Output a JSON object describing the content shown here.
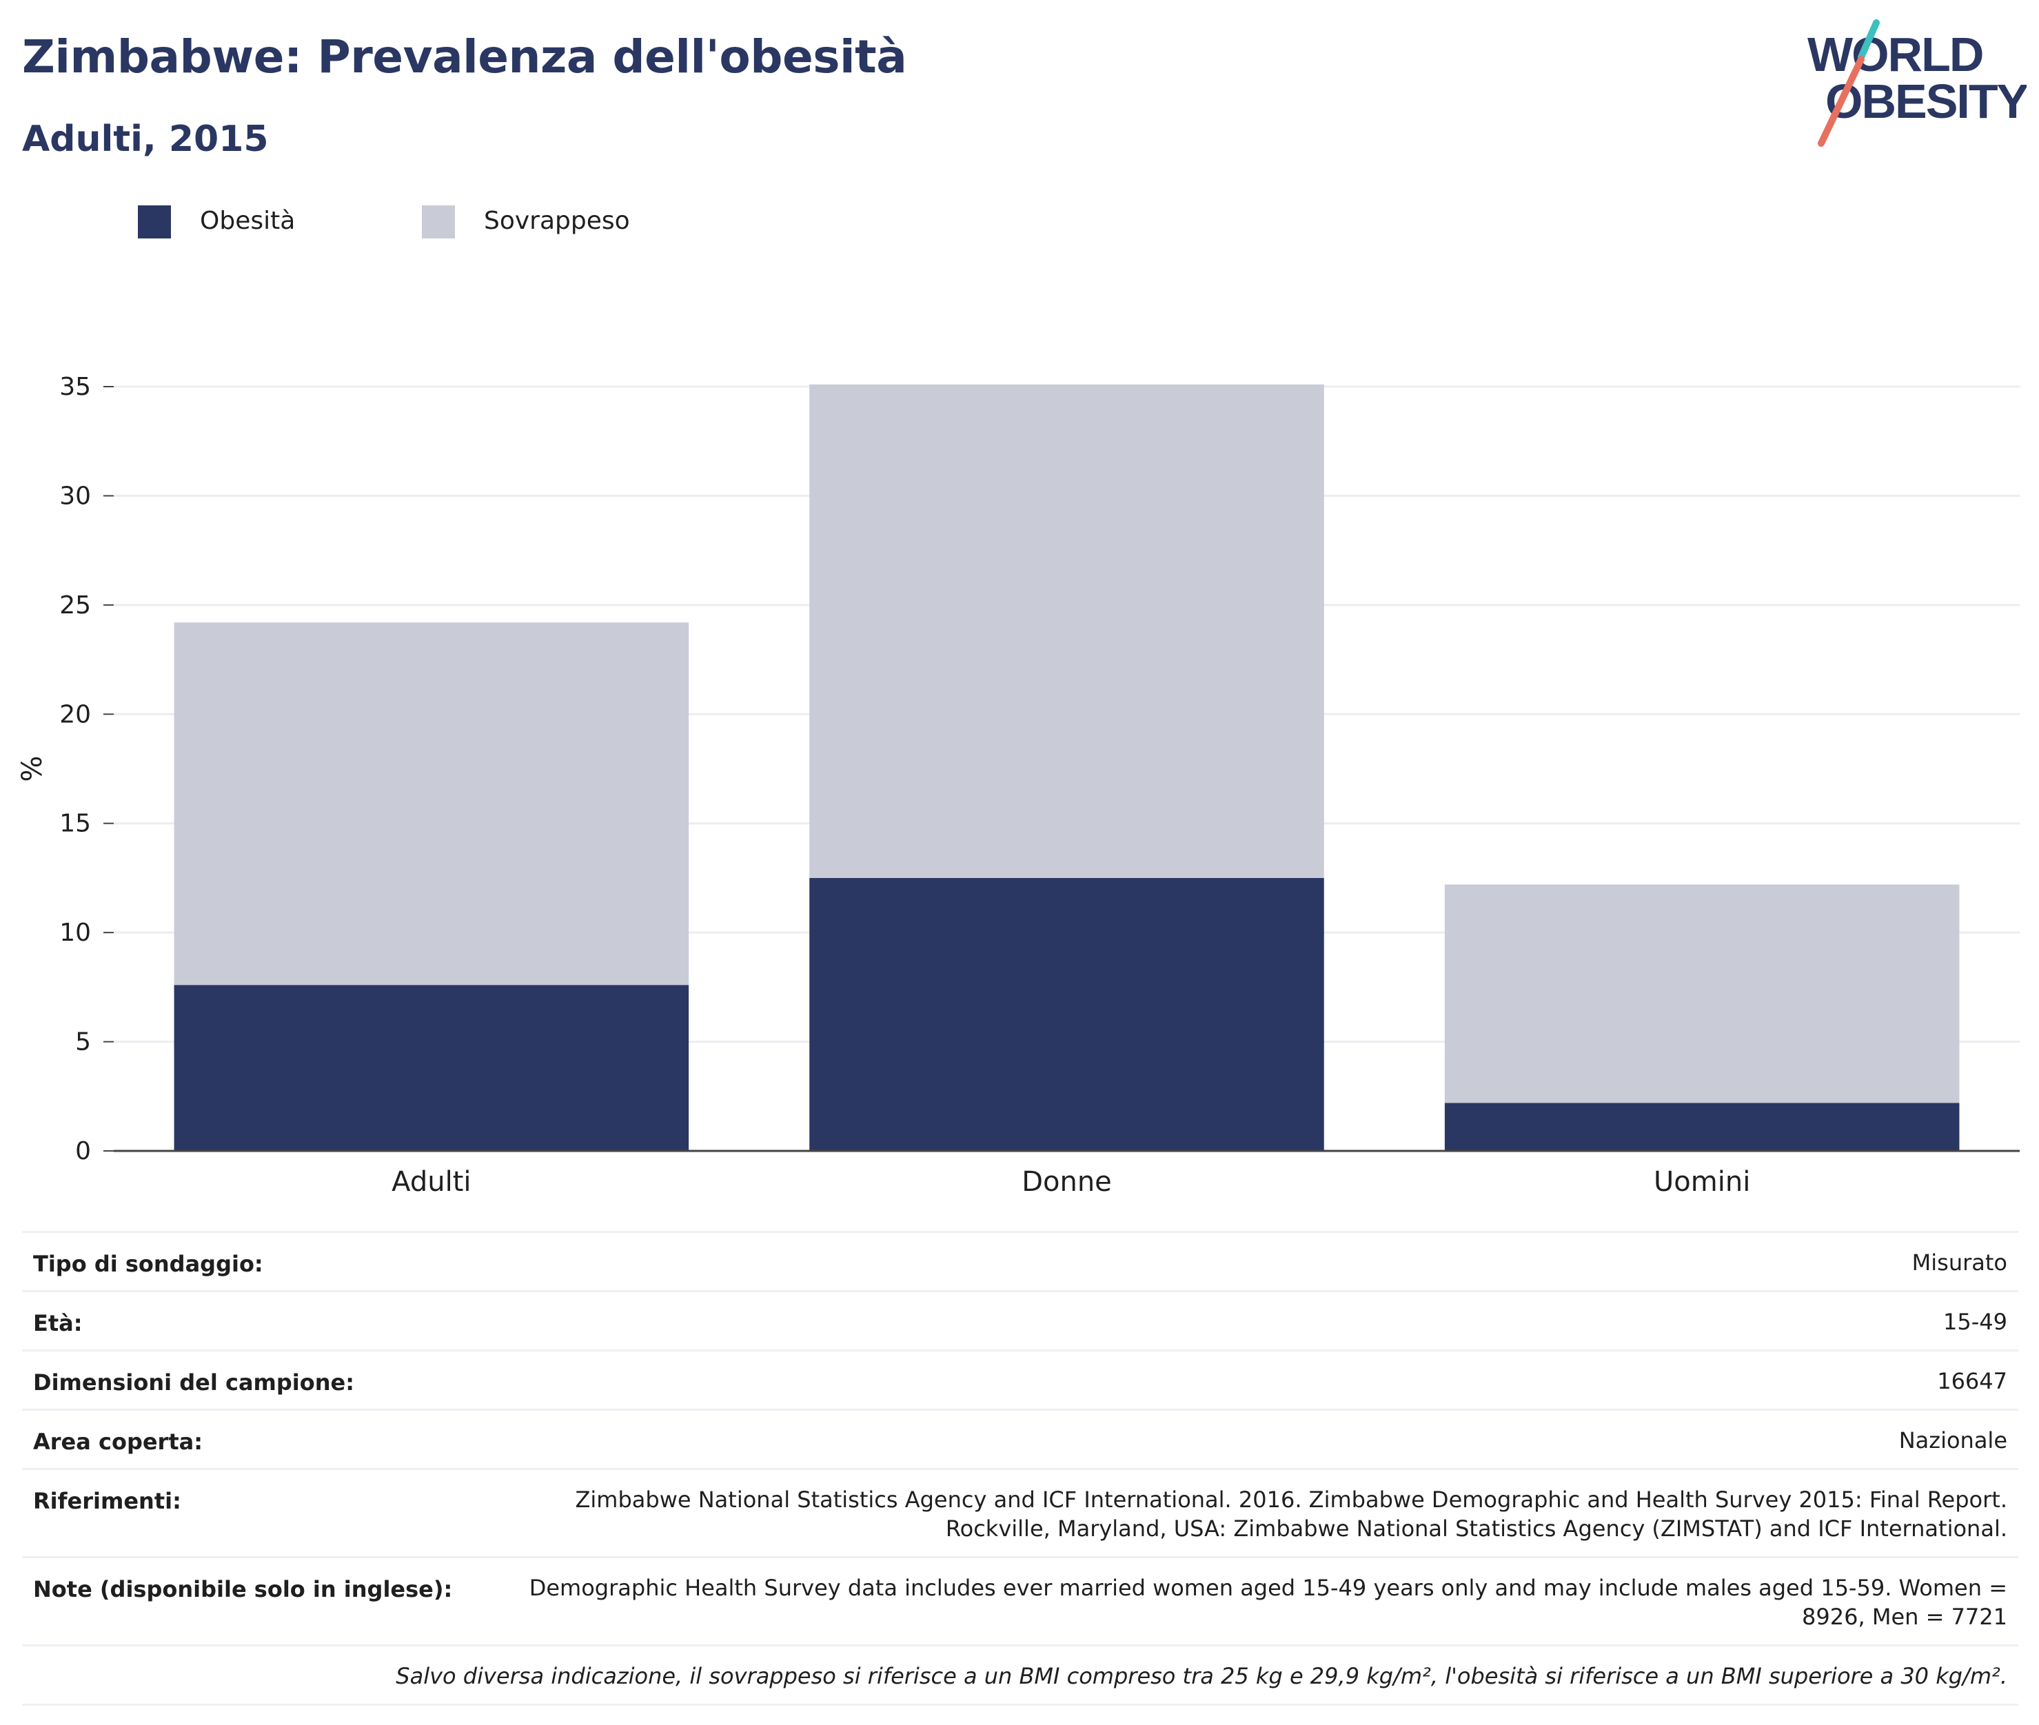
{
  "header": {
    "title": "Zimbabwe: Prevalenza dell'obesità",
    "subtitle": "Adulti, 2015"
  },
  "logo": {
    "line1": "WORLD",
    "line2": "OBESITY",
    "accent_teal": "#3cbfbf",
    "accent_coral": "#e8705f",
    "text_color": "#2a3762"
  },
  "legend": [
    {
      "label": "Obesità",
      "color": "#2a3762"
    },
    {
      "label": "Sovrappeso",
      "color": "#c9cbd7"
    }
  ],
  "chart_data": {
    "type": "bar",
    "stacked": true,
    "categories": [
      "Adulti",
      "Donne",
      "Uomini"
    ],
    "series": [
      {
        "name": "Obesità",
        "values": [
          7.6,
          12.5,
          2.2
        ],
        "color": "#2a3762"
      },
      {
        "name": "Sovrappeso",
        "values": [
          16.6,
          22.6,
          10.0
        ],
        "color": "#c9cbd7"
      }
    ],
    "ylabel": "%",
    "ylim": [
      0,
      35
    ],
    "yticks": [
      0,
      5,
      10,
      15,
      20,
      25,
      30,
      35
    ],
    "grid": true,
    "legend_position": "top-left"
  },
  "info": {
    "rows": [
      {
        "label": "Tipo di sondaggio:",
        "value": "Misurato"
      },
      {
        "label": "Età:",
        "value": "15-49"
      },
      {
        "label": "Dimensioni del campione:",
        "value": "16647"
      },
      {
        "label": "Area coperta:",
        "value": "Nazionale"
      },
      {
        "label": "Riferimenti:",
        "value_lines": [
          "Zimbabwe National Statistics Agency and ICF International. 2016. Zimbabwe Demographic and Health Survey 2015: Final Report.",
          "Rockville, Maryland, USA: Zimbabwe National Statistics Agency (ZIMSTAT) and ICF International."
        ]
      },
      {
        "label": "Note (disponibile solo in inglese):",
        "value_lines": [
          "Demographic Health Survey data includes ever married women aged 15-49 years only and may include males aged 15-59. Women =",
          "8926, Men = 7721"
        ]
      }
    ],
    "footnote": "Salvo diversa indicazione, il sovrappeso si riferisce a un BMI compreso tra 25 kg e 29,9 kg/m², l'obesità si riferisce a un BMI superiore a 30 kg/m²."
  }
}
